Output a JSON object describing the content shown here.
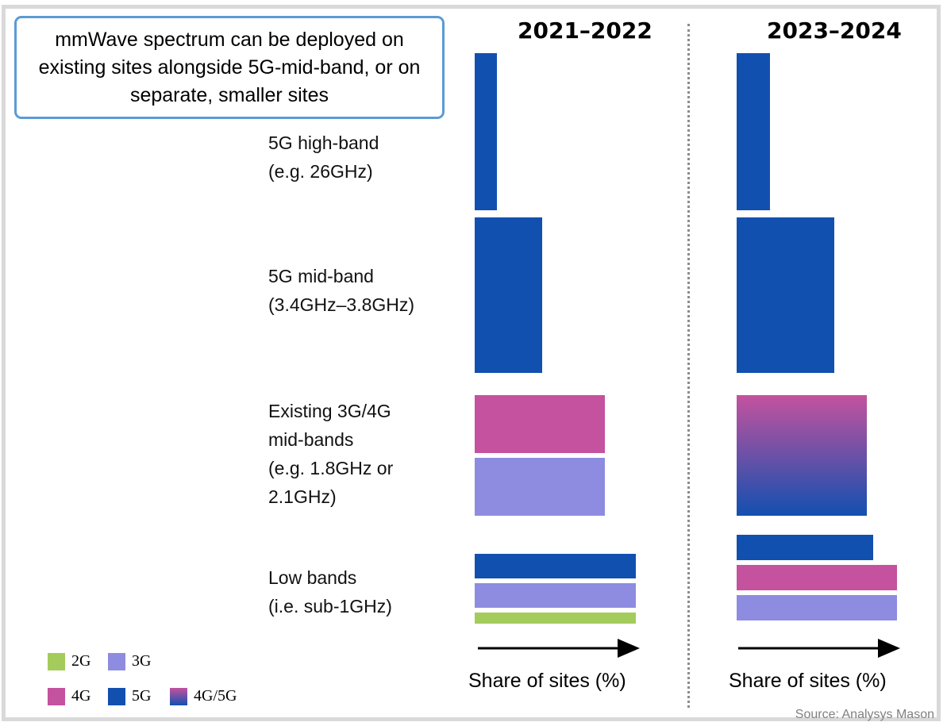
{
  "callout": "mmWave spectrum can be deployed on existing sites alongside 5G-mid-band, or on separate, smaller sites",
  "periods": [
    "2021–2022",
    "2023–2024"
  ],
  "axis_title": "Share of sites (%)",
  "source": "Source: Analysys Mason",
  "band_labels": [
    "5G high-band\n(e.g. 26GHz)",
    "5G mid-band\n(3.4GHz–3.8GHz)",
    "Existing 3G/4G\nmid-bands\n(e.g. 1.8GHz or\n2.1GHz)",
    "Low bands\n(i.e. sub-1GHz)"
  ],
  "colors": {
    "2G": "#a4cc5c",
    "3G": "#8e8ce0",
    "4G": "#c4529e",
    "5G": "#1250b0"
  },
  "legend": [
    {
      "label": "2G",
      "key": "2G"
    },
    {
      "label": "3G",
      "key": "3G"
    },
    {
      "label": "4G",
      "key": "4G"
    },
    {
      "label": "5G",
      "key": "5G"
    },
    {
      "label": "4G/5G",
      "key": "4G/5G"
    }
  ],
  "chart_data": {
    "type": "bar",
    "orientation": "horizontal",
    "value_unit": "Share of sites (%)",
    "value_scale": "relative (no numeric axis shown)",
    "panels": [
      {
        "period": "2021–2022",
        "bands": [
          {
            "band": "5G high-band",
            "bars": [
              {
                "tech": "5G",
                "value": 14
              }
            ]
          },
          {
            "band": "5G mid-band",
            "bars": [
              {
                "tech": "5G",
                "value": 42
              }
            ]
          },
          {
            "band": "Existing 3G/4G mid-bands",
            "bars": [
              {
                "tech": "4G",
                "value": 81
              },
              {
                "tech": "3G",
                "value": 81
              }
            ]
          },
          {
            "band": "Low bands",
            "bars": [
              {
                "tech": "5G",
                "value": 100
              },
              {
                "tech": "3G",
                "value": 100
              },
              {
                "tech": "2G",
                "value": 100
              }
            ]
          }
        ]
      },
      {
        "period": "2023–2024",
        "bands": [
          {
            "band": "5G high-band",
            "bars": [
              {
                "tech": "5G",
                "value": 21
              }
            ]
          },
          {
            "band": "5G mid-band",
            "bars": [
              {
                "tech": "5G",
                "value": 61
              }
            ]
          },
          {
            "band": "Existing 3G/4G mid-bands",
            "bars": [
              {
                "tech": "4G/5G",
                "value": 81
              }
            ]
          },
          {
            "band": "Low bands",
            "bars": [
              {
                "tech": "5G",
                "value": 85
              },
              {
                "tech": "4G",
                "value": 100
              },
              {
                "tech": "3G",
                "value": 100
              }
            ]
          }
        ]
      }
    ]
  }
}
